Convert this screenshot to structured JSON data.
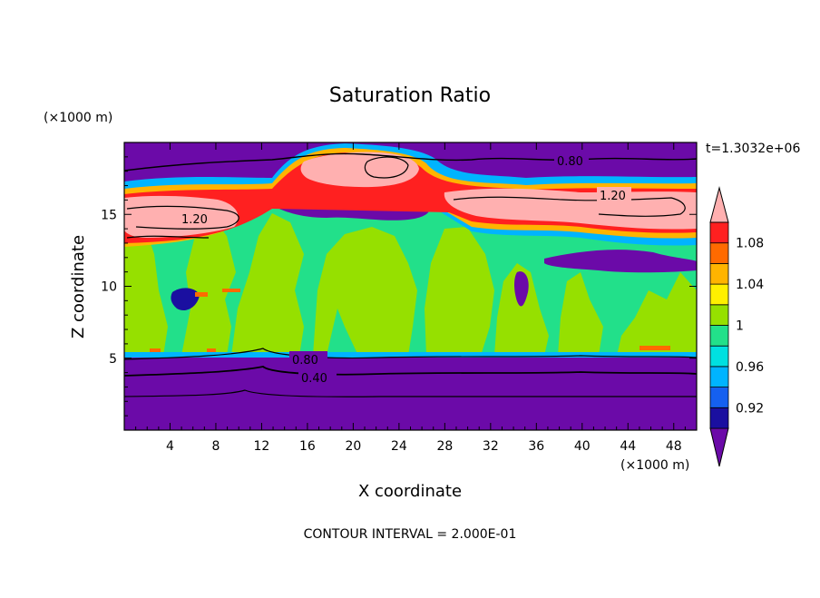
{
  "chart_data": {
    "type": "heatmap",
    "title": "Saturation Ratio",
    "xlabel": "X coordinate",
    "ylabel": "Z coordinate",
    "x_units": "(×1000 m)",
    "y_units": "(×1000 m)",
    "time_label": "t=1.3032e+06",
    "footer": "CONTOUR INTERVAL = 2.000E-01",
    "xlim": [
      0,
      50
    ],
    "ylim": [
      0,
      20
    ],
    "x_ticks": [
      4,
      8,
      12,
      16,
      20,
      24,
      28,
      32,
      36,
      40,
      44,
      48
    ],
    "x_tick_labels": [
      "4",
      "8",
      "12",
      "16",
      "20",
      "24",
      "28",
      "32",
      "36",
      "40",
      "44",
      "48"
    ],
    "y_ticks": [
      5,
      10,
      15
    ],
    "y_tick_labels": [
      "5",
      "10",
      "15"
    ],
    "contour_labels": [
      "0.80",
      "1.20",
      "1.20",
      "0.80",
      "0.40"
    ],
    "colorbar": {
      "levels": [
        0.9,
        0.92,
        0.94,
        0.96,
        0.98,
        1.0,
        1.02,
        1.04,
        1.06,
        1.08,
        1.1
      ],
      "colors": [
        "#6b0aa8",
        "#1a0fa0",
        "#1560f0",
        "#00b4ff",
        "#00e0e0",
        "#22e08a",
        "#96e000",
        "#fff000",
        "#ffb400",
        "#ff6a00",
        "#ff2020",
        "#ffb0b0"
      ],
      "labels": [
        "1.08",
        "1.04",
        "1",
        "0.96",
        "0.92"
      ]
    }
  }
}
